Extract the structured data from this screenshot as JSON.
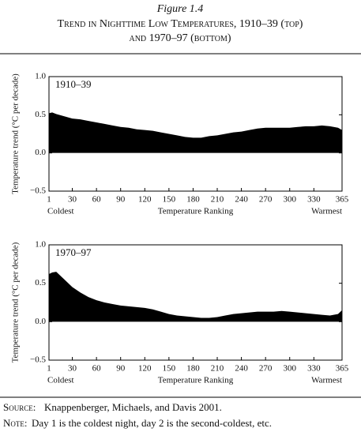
{
  "figure_label": "Figure 1.4",
  "title": [
    "Trend in Nighttime Low Temperatures, 1910–39 (top)",
    "and 1970–97 (bottom)"
  ],
  "source_label": "Source:",
  "source": "Knappenberger, Michaels, and Davis 2001.",
  "note_label": "Note:",
  "note": "Day 1 is the coldest night, day 2 is the second-coldest, etc.",
  "chart_data": [
    {
      "type": "area",
      "panel_label": "1910–39",
      "color": "#000000",
      "ylabel": "Temperature trend (°C per decade)",
      "xlabel": "Temperature Ranking",
      "x_left_note": "Coldest",
      "x_right_note": "Warmest",
      "xlim": [
        1,
        365
      ],
      "xticks": [
        1,
        30,
        60,
        90,
        120,
        150,
        180,
        210,
        240,
        270,
        300,
        330,
        365
      ],
      "ylim": [
        -0.5,
        1.0
      ],
      "yticks": [
        {
          "value": -0.5,
          "label": "−0.5"
        },
        {
          "value": 0,
          "label": "0.0"
        },
        0.5,
        {
          "value": 1,
          "label": "1.0"
        }
      ],
      "x": [
        1,
        5,
        10,
        20,
        30,
        40,
        50,
        60,
        70,
        80,
        90,
        100,
        110,
        120,
        130,
        140,
        150,
        160,
        170,
        180,
        190,
        200,
        210,
        220,
        230,
        240,
        250,
        260,
        270,
        280,
        290,
        300,
        310,
        320,
        330,
        340,
        350,
        360,
        365
      ],
      "values": [
        0.52,
        0.53,
        0.51,
        0.48,
        0.45,
        0.44,
        0.42,
        0.4,
        0.38,
        0.36,
        0.34,
        0.33,
        0.31,
        0.3,
        0.29,
        0.27,
        0.25,
        0.23,
        0.21,
        0.2,
        0.2,
        0.22,
        0.23,
        0.25,
        0.27,
        0.28,
        0.3,
        0.32,
        0.33,
        0.33,
        0.33,
        0.33,
        0.34,
        0.35,
        0.35,
        0.36,
        0.35,
        0.33,
        0.3
      ]
    },
    {
      "type": "area",
      "panel_label": "1970–97",
      "color": "#000000",
      "ylabel": "Temperature trend (°C per decade)",
      "xlabel": "Temperature Ranking",
      "x_left_note": "Coldest",
      "x_right_note": "Warmest",
      "xlim": [
        1,
        365
      ],
      "xticks": [
        1,
        30,
        60,
        90,
        120,
        150,
        180,
        210,
        240,
        270,
        300,
        330,
        365
      ],
      "ylim": [
        -0.5,
        1.0
      ],
      "yticks": [
        {
          "value": -0.5,
          "label": "−0.5"
        },
        {
          "value": 0,
          "label": "0.0"
        },
        0.5,
        {
          "value": 1,
          "label": "1.0"
        }
      ],
      "x": [
        1,
        5,
        10,
        20,
        30,
        40,
        50,
        60,
        70,
        80,
        90,
        100,
        110,
        120,
        130,
        140,
        150,
        160,
        170,
        180,
        190,
        200,
        210,
        220,
        230,
        240,
        250,
        260,
        270,
        280,
        290,
        300,
        310,
        320,
        330,
        340,
        350,
        360,
        365
      ],
      "values": [
        0.62,
        0.64,
        0.65,
        0.55,
        0.45,
        0.38,
        0.32,
        0.28,
        0.25,
        0.23,
        0.21,
        0.2,
        0.19,
        0.18,
        0.16,
        0.13,
        0.1,
        0.08,
        0.07,
        0.06,
        0.05,
        0.05,
        0.06,
        0.08,
        0.1,
        0.11,
        0.12,
        0.13,
        0.13,
        0.13,
        0.14,
        0.13,
        0.12,
        0.11,
        0.1,
        0.09,
        0.08,
        0.1,
        0.15
      ]
    }
  ]
}
